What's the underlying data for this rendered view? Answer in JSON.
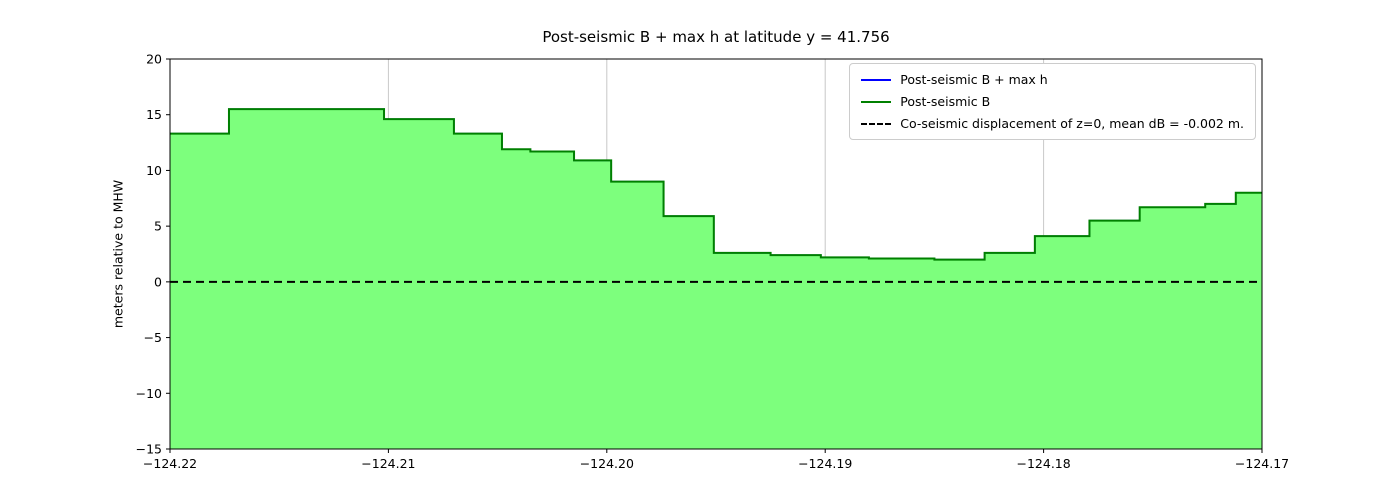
{
  "chart_data": {
    "type": "area",
    "title": "Post-seismic B + max h at latitude y = 41.756",
    "xlabel": "",
    "ylabel": "meters relative to MHW",
    "xlim": [
      -124.22,
      -124.17
    ],
    "ylim": [
      -15,
      20
    ],
    "grid": "vertical-only",
    "colors": {
      "grid": "#c8c8c8",
      "axes_border": "#000000",
      "fill": "#7dff7d",
      "post_seismic_b": "#008000",
      "post_seismic_b_max_h": "#0000ff",
      "zero_line": "#000000"
    },
    "xticks": {
      "values": [
        -124.22,
        -124.21,
        -124.2,
        -124.19,
        -124.18,
        -124.17
      ],
      "labels": [
        "−124.22",
        "−124.21",
        "−124.20",
        "−124.19",
        "−124.18",
        "−124.17"
      ]
    },
    "yticks": {
      "values": [
        -15,
        -10,
        -5,
        0,
        5,
        10,
        15,
        20
      ],
      "labels": [
        "−15",
        "−10",
        "−5",
        "0",
        "5",
        "10",
        "15",
        "20"
      ]
    },
    "step_x_edges": [
      -124.22,
      -124.2173,
      -124.2102,
      -124.207,
      -124.2048,
      -124.2035,
      -124.2015,
      -124.1998,
      -124.1974,
      -124.1951,
      -124.1925,
      -124.1902,
      -124.188,
      -124.185,
      -124.1827,
      -124.1804,
      -124.1779,
      -124.1756,
      -124.1726,
      -124.1712,
      -124.17
    ],
    "series": [
      {
        "name": "Post-seismic B + max h",
        "color": "#0000ff",
        "line_width": 1.5,
        "values": [
          13.3,
          15.5,
          14.6,
          13.3,
          11.9,
          11.7,
          10.9,
          9.0,
          5.9,
          2.6,
          2.4,
          2.2,
          2.1,
          2.0,
          2.6,
          4.1,
          5.5,
          6.7,
          7.0,
          8.0
        ]
      },
      {
        "name": "Post-seismic B",
        "color": "#008000",
        "line_width": 2,
        "fill": "#7dff7d",
        "values": [
          13.3,
          15.5,
          14.6,
          13.3,
          11.9,
          11.7,
          10.9,
          9.0,
          5.9,
          2.6,
          2.4,
          2.2,
          2.1,
          2.0,
          2.6,
          4.1,
          5.5,
          6.7,
          7.0,
          8.0
        ]
      }
    ],
    "zero_line": {
      "y": 0,
      "color": "#000000",
      "style": "dashed",
      "label": "Co-seismic displacement of z=0, mean dB = -0.002 m."
    },
    "legend": {
      "position": "upper right",
      "entries": [
        {
          "label": "Post-seismic B + max h",
          "color": "#0000ff",
          "dash": "solid"
        },
        {
          "label": "Post-seismic B",
          "color": "#008000",
          "dash": "solid"
        },
        {
          "label": "Co-seismic displacement of z=0, mean dB = -0.002 m.",
          "color": "#000000",
          "dash": "dashed"
        }
      ]
    }
  }
}
